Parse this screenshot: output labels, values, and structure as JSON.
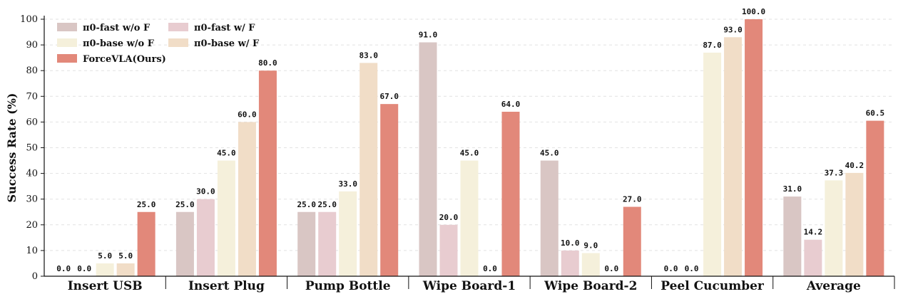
{
  "chart_data": {
    "type": "bar",
    "title": "",
    "xlabel": "",
    "ylabel": "Success Rate (%)",
    "ylim": [
      0,
      100
    ],
    "yticks": [
      0,
      10,
      20,
      30,
      40,
      50,
      60,
      70,
      80,
      90,
      100
    ],
    "grid": "horizontal dashed",
    "legend_position": "top-left",
    "categories": [
      "Insert USB",
      "Insert Plug",
      "Pump Bottle",
      "Wipe Board-1",
      "Wipe Board-2",
      "Peel Cucumber",
      "Average"
    ],
    "series": [
      {
        "name": "π0-fast w/o F",
        "color": "#d9c6c4",
        "values": [
          0.0,
          25.0,
          25.0,
          91.0,
          45.0,
          0.0,
          31.0
        ]
      },
      {
        "name": "π0-fast w/ F",
        "color": "#e8ccd0",
        "values": [
          0.0,
          30.0,
          25.0,
          20.0,
          10.0,
          0.0,
          14.2
        ]
      },
      {
        "name": "π0-base w/o F",
        "color": "#f5f0db",
        "values": [
          5.0,
          45.0,
          33.0,
          45.0,
          9.0,
          87.0,
          37.3
        ]
      },
      {
        "name": "π0-base w/ F",
        "color": "#f1ddc7",
        "values": [
          5.0,
          60.0,
          83.0,
          0.0,
          0.0,
          93.0,
          40.2
        ]
      },
      {
        "name": "ForceVLA(Ours)",
        "color": "#e2887a",
        "values": [
          25.0,
          80.0,
          67.0,
          64.0,
          27.0,
          100.0,
          60.5
        ]
      }
    ]
  }
}
